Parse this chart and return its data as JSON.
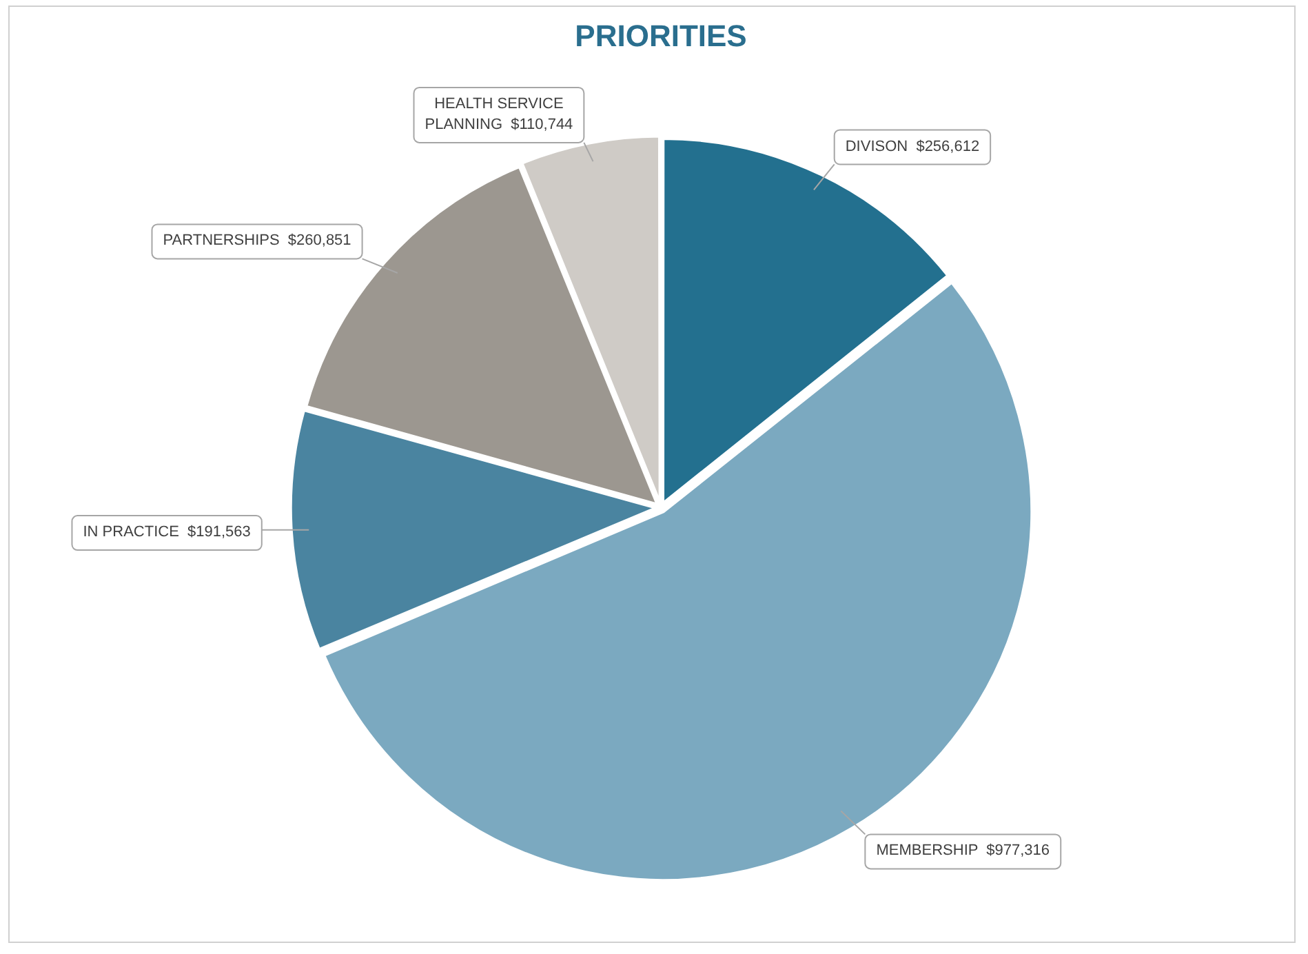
{
  "chart_data": {
    "type": "pie",
    "title": "PRIORITIES",
    "categories": [
      "DIVISON",
      "MEMBERSHIP",
      "IN PRACTICE",
      "PARTNERSHIPS",
      "HEALTH SERVICE PLANNING"
    ],
    "values": [
      256612,
      977316,
      191563,
      260851,
      110744
    ],
    "value_labels": [
      "$256,612",
      "$977,316",
      "$191,563",
      "$260,851",
      "$110,744"
    ],
    "colors": [
      "#23708f",
      "#7ba9c0",
      "#4a84a0",
      "#9c9790",
      "#cfcbc6"
    ]
  }
}
